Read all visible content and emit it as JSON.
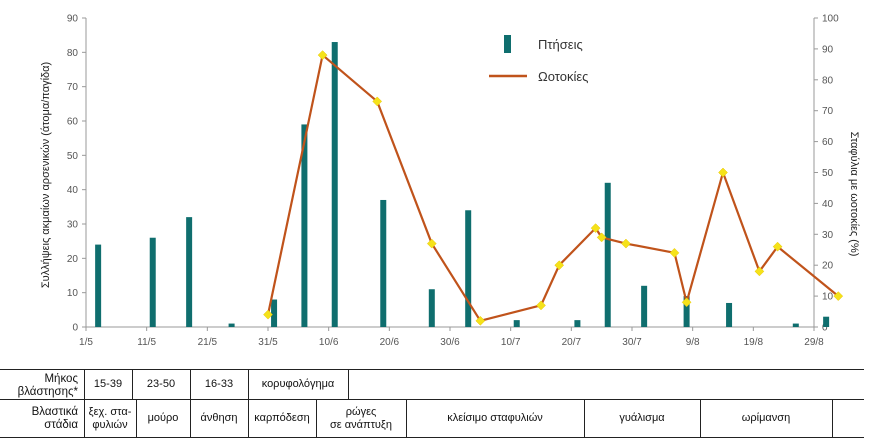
{
  "chart_data": {
    "type": "bar+line",
    "ylabel_left": "Συλλήψεις ακμαίων αρσενικών (άτομα/παγίδα)",
    "ylabel_right": "Σταφύλια με ωοτοκίες (%)",
    "ylim_left": [
      0,
      90
    ],
    "ylim_right": [
      0,
      100
    ],
    "yticks_left": [
      "0",
      "10",
      "20",
      "30",
      "40",
      "50",
      "60",
      "70",
      "80",
      "90"
    ],
    "yticks_right": [
      "0",
      "10",
      "20",
      "30",
      "40",
      "50",
      "60",
      "70",
      "80",
      "90",
      "100"
    ],
    "x_tick_labels": [
      "1/5",
      "11/5",
      "21/5",
      "31/5",
      "10/6",
      "20/6",
      "30/6",
      "10/7",
      "20/7",
      "30/7",
      "9/8",
      "19/8",
      "29/8"
    ],
    "x_range_days": [
      0,
      120
    ],
    "legend": {
      "bar_name": "Πτήσεις",
      "line_name": "Ωοτοκίες",
      "position": "top-center"
    },
    "colors": {
      "bars": "#0f6e6e",
      "line": "#c0531b",
      "markers": "#f5e21a"
    },
    "bars": [
      {
        "date": "3/5",
        "day": 2,
        "value": 24
      },
      {
        "date": "12/5",
        "day": 11,
        "value": 26
      },
      {
        "date": "18/5",
        "day": 17,
        "value": 32
      },
      {
        "date": "25/5",
        "day": 24,
        "value": 1
      },
      {
        "date": "1/6",
        "day": 31,
        "value": 8
      },
      {
        "date": "6/6",
        "day": 36,
        "value": 59
      },
      {
        "date": "11/6",
        "day": 41,
        "value": 83
      },
      {
        "date": "19/6",
        "day": 49,
        "value": 37
      },
      {
        "date": "27/6",
        "day": 57,
        "value": 11
      },
      {
        "date": "3/7",
        "day": 63,
        "value": 34
      },
      {
        "date": "11/7",
        "day": 71,
        "value": 2
      },
      {
        "date": "21/7",
        "day": 81,
        "value": 2
      },
      {
        "date": "26/7",
        "day": 86,
        "value": 42
      },
      {
        "date": "1/8",
        "day": 92,
        "value": 12
      },
      {
        "date": "8/8",
        "day": 99,
        "value": 9
      },
      {
        "date": "15/8",
        "day": 106,
        "value": 7
      },
      {
        "date": "26/8",
        "day": 117,
        "value": 1
      },
      {
        "date": "31/8",
        "day": 122,
        "value": 3
      }
    ],
    "line": [
      {
        "date": "31/5",
        "day": 30,
        "value": 4
      },
      {
        "date": "9/6",
        "day": 39,
        "value": 88
      },
      {
        "date": "18/6",
        "day": 48,
        "value": 73
      },
      {
        "date": "27/6",
        "day": 57,
        "value": 27
      },
      {
        "date": "5/7",
        "day": 65,
        "value": 2
      },
      {
        "date": "15/7",
        "day": 75,
        "value": 7
      },
      {
        "date": "18/7",
        "day": 78,
        "value": 20
      },
      {
        "date": "24/7",
        "day": 84,
        "value": 32
      },
      {
        "date": "25/7",
        "day": 85,
        "value": 29
      },
      {
        "date": "29/7",
        "day": 89,
        "value": 27
      },
      {
        "date": "6/8",
        "day": 97,
        "value": 24
      },
      {
        "date": "8/8",
        "day": 99,
        "value": 8
      },
      {
        "date": "14/8",
        "day": 105,
        "value": 50
      },
      {
        "date": "20/8",
        "day": 111,
        "value": 18
      },
      {
        "date": "23/8",
        "day": 114,
        "value": 26
      },
      {
        "date": "2/9",
        "day": 124,
        "value": 10
      }
    ]
  },
  "table": {
    "row1_label_line1": "Μήκος",
    "row1_label_line2": "βλάστησης*",
    "row1_cells": [
      {
        "name": "length-15-39",
        "text": "15-39"
      },
      {
        "name": "length-23-50",
        "text": "23-50"
      },
      {
        "name": "length-16-33",
        "text": "16-33"
      },
      {
        "name": "length-topping",
        "text": "κορυφολόγημα"
      }
    ],
    "row2_label_line1": "Βλαστικά",
    "row2_label_line2": "στάδια",
    "row2_cells": [
      {
        "name": "stage-cluster-separation",
        "line1": "ξεχ. στα-",
        "line2": "φυλιών"
      },
      {
        "name": "stage-morula",
        "line1": "μούρο",
        "line2": ""
      },
      {
        "name": "stage-flowering",
        "line1": "άνθηση",
        "line2": ""
      },
      {
        "name": "stage-fruit-set",
        "line1": "καρπόδεση",
        "line2": ""
      },
      {
        "name": "stage-berry-development",
        "line1": "ρώγες",
        "line2": "σε ανάπτυξη"
      },
      {
        "name": "stage-bunch-closure",
        "line1": "κλείσιμο σταφυλιών",
        "line2": ""
      },
      {
        "name": "stage-veraison",
        "line1": "γυάλισμα",
        "line2": ""
      },
      {
        "name": "stage-ripening",
        "line1": "ωρίμανση",
        "line2": ""
      }
    ]
  }
}
